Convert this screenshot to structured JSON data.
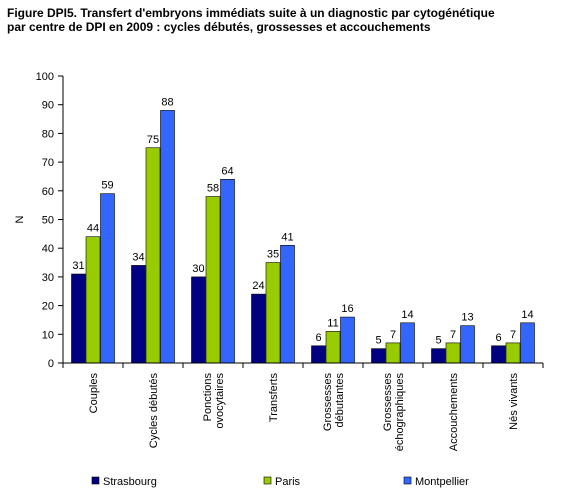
{
  "title_line1": "Figure DPI5. Transfert d'embryons immédiats suite à un diagnostic par cytogénétique",
  "title_line2": "par centre de DPI en 2009 : cycles débutés, grossesses et accouchements",
  "chart_data": {
    "type": "bar",
    "ylabel": "N",
    "xlabel": "",
    "ylim": [
      0,
      100
    ],
    "yticks": [
      0,
      10,
      20,
      30,
      40,
      50,
      60,
      70,
      80,
      90,
      100
    ],
    "grid": false,
    "legend_position": "bottom",
    "categories": [
      [
        "Couples"
      ],
      [
        "Cycles débutés"
      ],
      [
        "Ponctions",
        "ovocytaires"
      ],
      [
        "Transferts"
      ],
      [
        "Grossesses",
        "débutantes"
      ],
      [
        "Grossesses",
        "échographiques"
      ],
      [
        "Accouchements"
      ],
      [
        "Nés vivants"
      ]
    ],
    "series": [
      {
        "name": "Strasbourg",
        "color": "#000080",
        "values": [
          31,
          34,
          30,
          24,
          6,
          5,
          5,
          6
        ]
      },
      {
        "name": "Paris",
        "color": "#99cc00",
        "values": [
          44,
          75,
          58,
          35,
          11,
          7,
          7,
          7
        ]
      },
      {
        "name": "Montpellier",
        "color": "#3366ff",
        "values": [
          59,
          88,
          64,
          41,
          16,
          14,
          13,
          14
        ]
      }
    ]
  }
}
